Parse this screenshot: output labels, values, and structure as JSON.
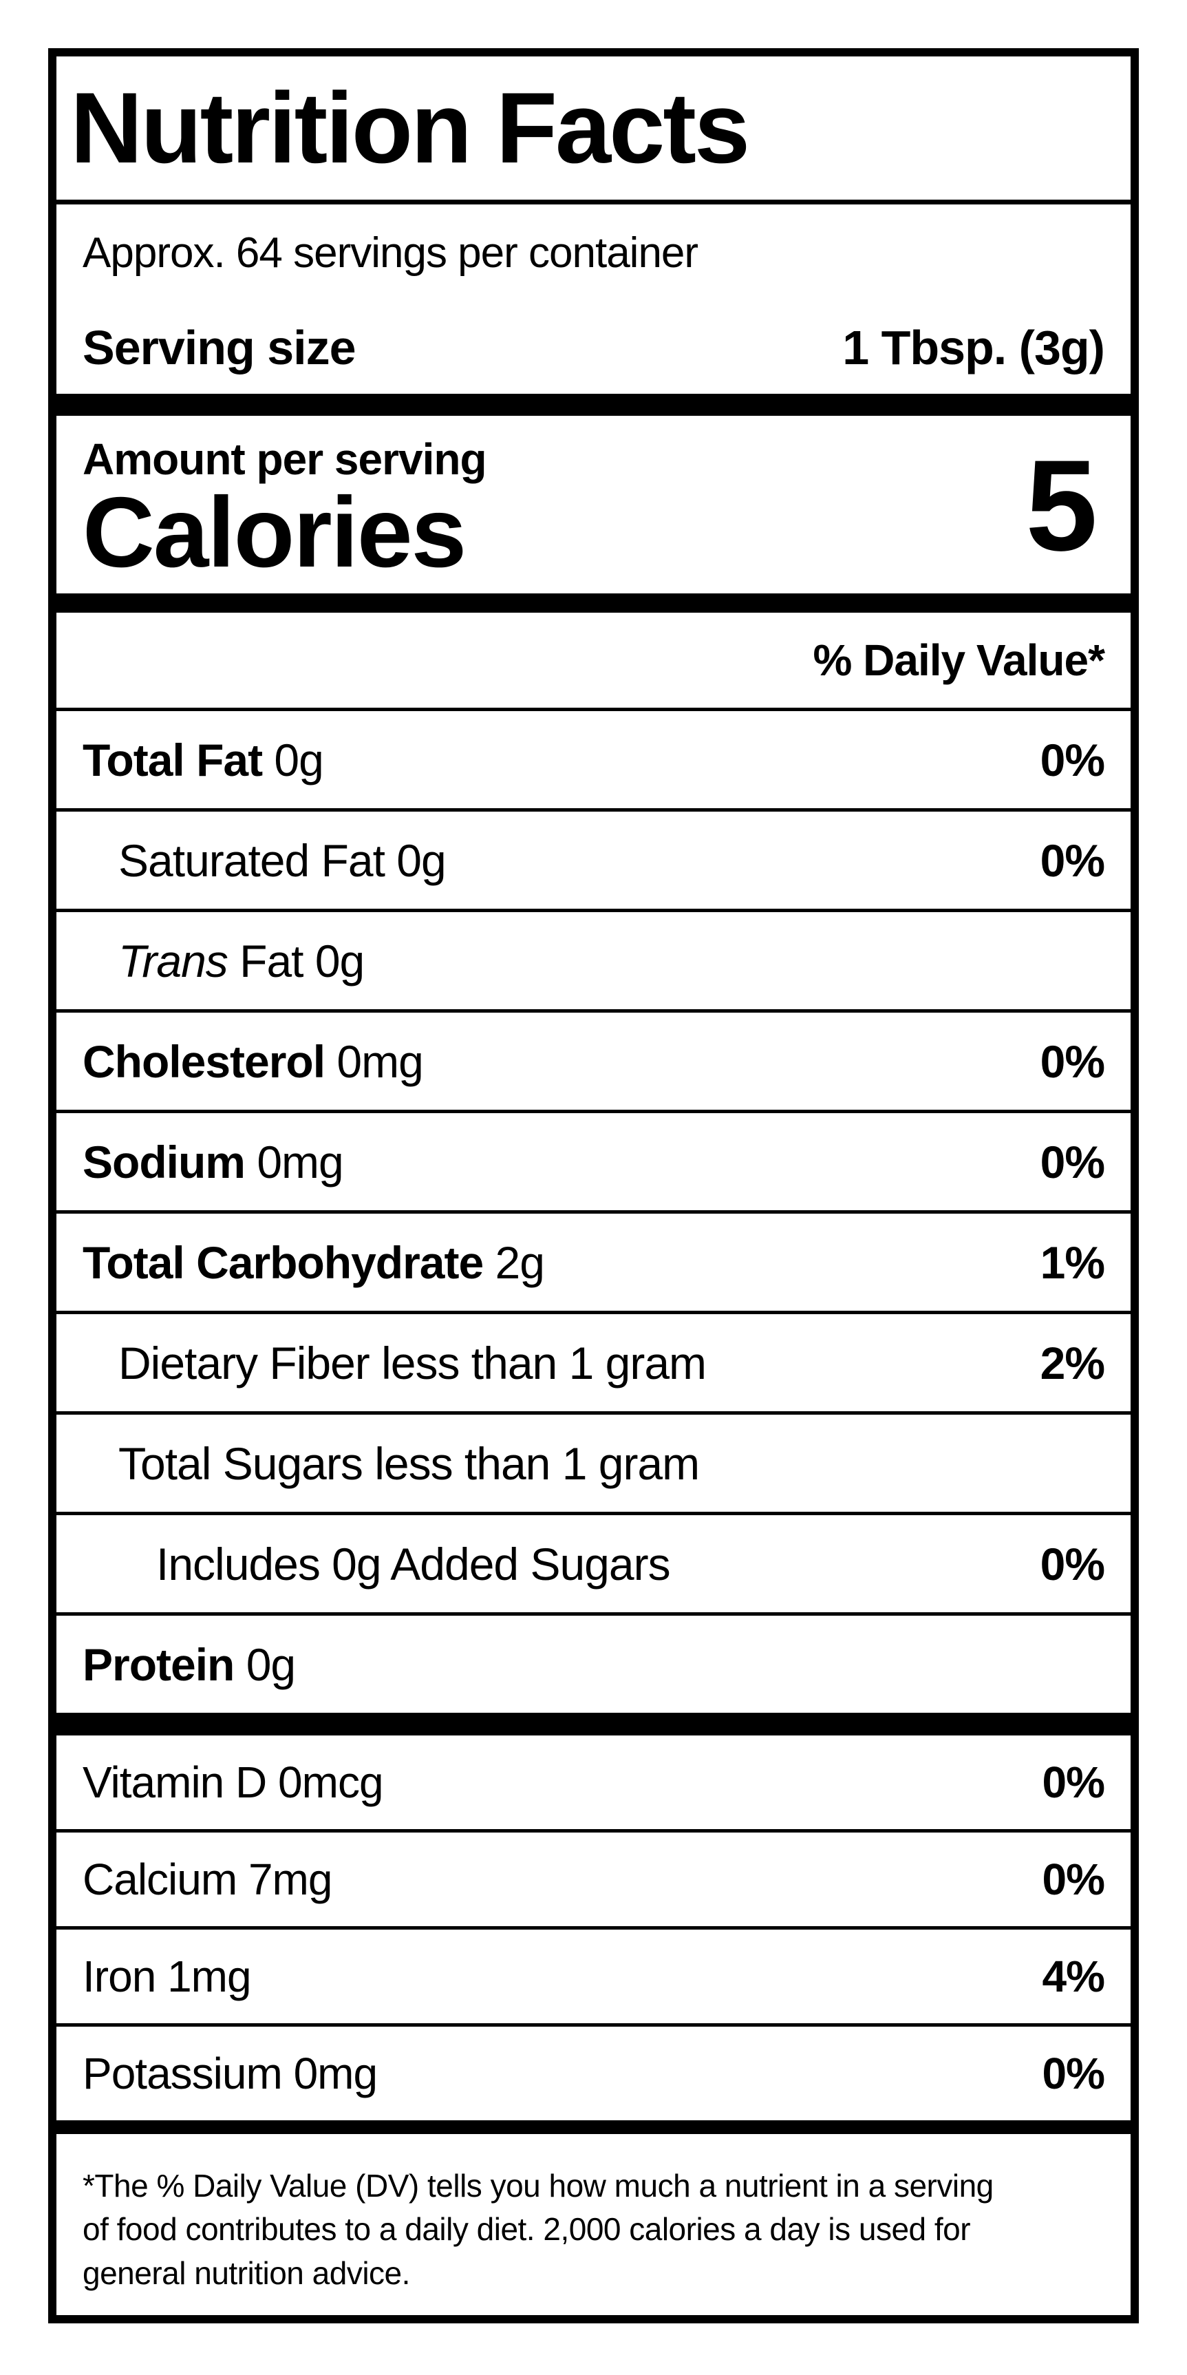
{
  "label": {
    "title": "Nutrition Facts",
    "servings_per_container": "Approx. 64 servings per container",
    "serving_size_label": "Serving size",
    "serving_size_value": "1 Tbsp. (3g)",
    "amount_per_serving": "Amount per serving",
    "calories_label": "Calories",
    "calories_value": "5",
    "daily_value_header": "% Daily Value*",
    "nutrients": [
      {
        "bold": "Total Fat",
        "rest": " 0g",
        "dv": "0%",
        "indent": 0
      },
      {
        "bold": "",
        "rest": "Saturated Fat 0g",
        "dv": "0%",
        "indent": 1
      },
      {
        "bold": "",
        "italic": "Trans",
        "rest": " Fat 0g",
        "dv": "",
        "indent": 1
      },
      {
        "bold": "Cholesterol",
        "rest": " 0mg",
        "dv": "0%",
        "indent": 0
      },
      {
        "bold": "Sodium",
        "rest": " 0mg",
        "dv": "0%",
        "indent": 0
      },
      {
        "bold": "Total Carbohydrate",
        "rest": " 2g",
        "dv": "1%",
        "indent": 0
      },
      {
        "bold": "",
        "rest": "Dietary Fiber less than 1 gram",
        "dv": "2%",
        "indent": 1
      },
      {
        "bold": "",
        "rest": "Total Sugars less than 1 gram",
        "dv": "",
        "indent": 1
      },
      {
        "bold": "",
        "rest": "Includes 0g Added Sugars",
        "dv": "0%",
        "indent": 2
      },
      {
        "bold": "Protein",
        "rest": " 0g",
        "dv": "",
        "indent": 0
      }
    ],
    "micronutrients": [
      {
        "name": "Vitamin D 0mcg",
        "dv": "0%"
      },
      {
        "name": "Calcium 7mg",
        "dv": "0%"
      },
      {
        "name": "Iron 1mg",
        "dv": "4%"
      },
      {
        "name": "Potassium 0mg",
        "dv": "0%"
      }
    ],
    "footnote_lines": [
      "*The % Daily Value (DV) tells you how much a nutrient in a serving",
      "of food contributes to a daily diet. 2,000 calories a day is used for",
      "general nutrition advice."
    ],
    "colors": {
      "ink": "#000000",
      "background": "#ffffff"
    }
  }
}
